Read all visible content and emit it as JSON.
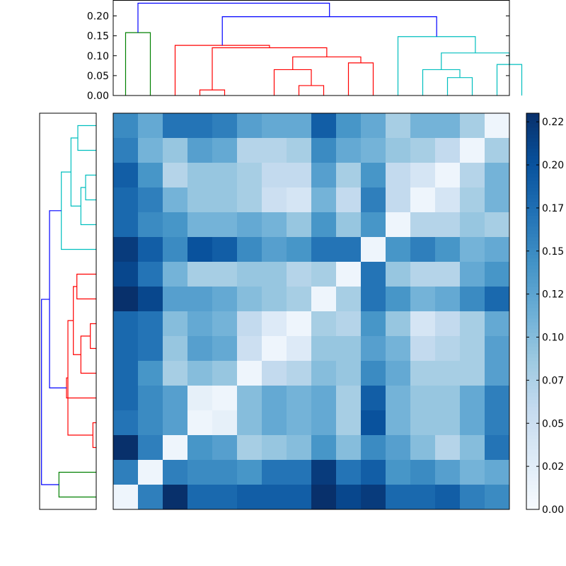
{
  "chart_data": [
    {
      "type": "dendrogram",
      "orientation": "top",
      "ylim": [
        0,
        0.24
      ],
      "y_ticks": [
        "0.00",
        "0.05",
        "0.10",
        "0.15",
        "0.20"
      ],
      "y_tick_values": [
        0.0,
        0.05,
        0.1,
        0.15,
        0.2
      ],
      "leaf_count": 16,
      "links": [
        {
          "x": [
            0.5,
            0.5,
            1.5,
            1.5
          ],
          "y": [
            0.0,
            0.158,
            0.158,
            0.0
          ],
          "color": "#008000"
        },
        {
          "x": [
            3.5,
            3.5,
            4.5,
            4.5
          ],
          "y": [
            0.0,
            0.014,
            0.014,
            0.0
          ],
          "color": "#ff0000"
        },
        {
          "x": [
            7.5,
            7.5,
            8.5,
            8.5
          ],
          "y": [
            0.0,
            0.025,
            0.025,
            0.0
          ],
          "color": "#ff0000"
        },
        {
          "x": [
            6.5,
            6.5,
            8.0,
            8.0
          ],
          "y": [
            0.0,
            0.065,
            0.065,
            0.025
          ],
          "color": "#ff0000"
        },
        {
          "x": [
            9.5,
            9.5,
            10.5,
            10.5
          ],
          "y": [
            0.0,
            0.082,
            0.082,
            0.0
          ],
          "color": "#ff0000"
        },
        {
          "x": [
            7.25,
            7.25,
            10.0,
            10.0
          ],
          "y": [
            0.065,
            0.097,
            0.097,
            0.082
          ],
          "color": "#ff0000"
        },
        {
          "x": [
            4.0,
            4.0,
            8.625,
            8.625
          ],
          "y": [
            0.014,
            0.12,
            0.12,
            0.097
          ],
          "color": "#ff0000"
        },
        {
          "x": [
            2.5,
            2.5,
            6.3125,
            6.3125
          ],
          "y": [
            0.0,
            0.126,
            0.126,
            0.12
          ],
          "color": "#ff0000"
        },
        {
          "x": [
            13.5,
            13.5,
            14.5,
            14.5
          ],
          "y": [
            0.0,
            0.045,
            0.045,
            0.0
          ],
          "color": "#00bfbf"
        },
        {
          "x": [
            12.5,
            12.5,
            14.0,
            14.0
          ],
          "y": [
            0.0,
            0.065,
            0.065,
            0.045
          ],
          "color": "#00bfbf"
        },
        {
          "x": [
            15.5,
            15.5,
            16.5,
            16.5
          ],
          "y": [
            0.0,
            0.078,
            0.078,
            0.0
          ],
          "color": "#00bfbf"
        },
        {
          "x": [
            13.25,
            13.25,
            16.0,
            16.0
          ],
          "y": [
            0.065,
            0.107,
            0.107,
            0.078
          ],
          "color": "#00bfbf"
        },
        {
          "x": [
            11.5,
            11.5,
            14.625,
            14.625
          ],
          "y": [
            0.0,
            0.148,
            0.148,
            0.107
          ],
          "color": "#00bfbf"
        },
        {
          "x": [
            4.40625,
            4.40625,
            13.0625,
            13.0625
          ],
          "y": [
            0.126,
            0.198,
            0.198,
            0.148
          ],
          "color": "#0000ff"
        },
        {
          "x": [
            1.0,
            1.0,
            8.734375,
            8.734375
          ],
          "y": [
            0.158,
            0.232,
            0.232,
            0.198
          ],
          "color": "#0000ff"
        }
      ]
    },
    {
      "type": "dendrogram",
      "orientation": "left",
      "xlim": [
        0.24,
        0
      ],
      "leaf_count": 16,
      "links": [
        {
          "leaf": [
            0.5,
            0.5,
            1.5,
            1.5
          ],
          "height": [
            0.0,
            0.158,
            0.158,
            0.0
          ],
          "color": "#008000"
        },
        {
          "leaf": [
            2.5,
            2.5,
            3.5,
            3.5
          ],
          "height": [
            0.0,
            0.014,
            0.014,
            0.0
          ],
          "color": "#ff0000"
        },
        {
          "leaf": [
            6.5,
            6.5,
            7.5,
            7.5
          ],
          "height": [
            0.0,
            0.025,
            0.025,
            0.0
          ],
          "color": "#ff0000"
        },
        {
          "leaf": [
            5.5,
            5.5,
            7.0,
            7.0
          ],
          "height": [
            0.0,
            0.065,
            0.065,
            0.025
          ],
          "color": "#ff0000"
        },
        {
          "leaf": [
            8.5,
            8.5,
            9.5,
            9.5
          ],
          "height": [
            0.0,
            0.082,
            0.082,
            0.0
          ],
          "color": "#ff0000"
        },
        {
          "leaf": [
            6.25,
            6.25,
            9.0,
            9.0
          ],
          "height": [
            0.065,
            0.097,
            0.097,
            0.082
          ],
          "color": "#ff0000"
        },
        {
          "leaf": [
            3.0,
            3.0,
            7.625,
            7.625
          ],
          "height": [
            0.014,
            0.12,
            0.12,
            0.097
          ],
          "color": "#ff0000"
        },
        {
          "leaf": [
            4.5,
            4.5,
            5.3125,
            5.3125
          ],
          "height": [
            0.0,
            0.126,
            0.126,
            0.12
          ],
          "color": "#ff0000"
        },
        {
          "leaf": [
            12.5,
            12.5,
            13.5,
            13.5
          ],
          "height": [
            0.0,
            0.045,
            0.045,
            0.0
          ],
          "color": "#00bfbf"
        },
        {
          "leaf": [
            11.5,
            11.5,
            13.0,
            13.0
          ],
          "height": [
            0.0,
            0.065,
            0.065,
            0.045
          ],
          "color": "#00bfbf"
        },
        {
          "leaf": [
            14.5,
            14.5,
            15.5,
            15.5
          ],
          "height": [
            0.0,
            0.078,
            0.078,
            0.0
          ],
          "color": "#00bfbf"
        },
        {
          "leaf": [
            12.25,
            12.25,
            15.0,
            15.0
          ],
          "height": [
            0.065,
            0.107,
            0.107,
            0.078
          ],
          "color": "#00bfbf"
        },
        {
          "leaf": [
            10.5,
            10.5,
            13.625,
            13.625
          ],
          "height": [
            0.0,
            0.148,
            0.148,
            0.107
          ],
          "color": "#00bfbf"
        },
        {
          "leaf": [
            4.90625,
            4.90625,
            12.0625,
            12.0625
          ],
          "height": [
            0.126,
            0.198,
            0.198,
            0.148
          ],
          "color": "#0000ff"
        },
        {
          "leaf": [
            1.0,
            1.0,
            8.484375,
            8.484375
          ],
          "height": [
            0.158,
            0.232,
            0.232,
            0.198
          ],
          "color": "#0000ff"
        }
      ]
    },
    {
      "type": "heatmap",
      "colormap": "Blues",
      "vmin": 0,
      "vmax": 0.23,
      "rows": 16,
      "cols": 16,
      "values": [
        [
          0.15,
          0.12,
          0.17,
          0.17,
          0.16,
          0.13,
          0.12,
          0.12,
          0.19,
          0.14,
          0.12,
          0.08,
          0.11,
          0.11,
          0.08,
          0.01
        ],
        [
          0.16,
          0.11,
          0.09,
          0.13,
          0.12,
          0.07,
          0.07,
          0.08,
          0.15,
          0.12,
          0.11,
          0.09,
          0.08,
          0.06,
          0.01,
          0.08
        ],
        [
          0.19,
          0.14,
          0.07,
          0.09,
          0.09,
          0.08,
          0.06,
          0.06,
          0.13,
          0.08,
          0.14,
          0.06,
          0.04,
          0.01,
          0.07,
          0.11
        ],
        [
          0.18,
          0.16,
          0.11,
          0.09,
          0.09,
          0.08,
          0.05,
          0.04,
          0.11,
          0.06,
          0.16,
          0.06,
          0.01,
          0.04,
          0.08,
          0.11
        ],
        [
          0.18,
          0.15,
          0.14,
          0.11,
          0.11,
          0.12,
          0.11,
          0.09,
          0.14,
          0.09,
          0.14,
          0.01,
          0.07,
          0.07,
          0.09,
          0.08
        ],
        [
          0.22,
          0.19,
          0.15,
          0.2,
          0.19,
          0.15,
          0.13,
          0.14,
          0.17,
          0.17,
          0.01,
          0.14,
          0.16,
          0.14,
          0.11,
          0.12
        ],
        [
          0.21,
          0.17,
          0.11,
          0.08,
          0.08,
          0.09,
          0.09,
          0.07,
          0.08,
          0.01,
          0.17,
          0.09,
          0.07,
          0.07,
          0.12,
          0.14
        ],
        [
          0.23,
          0.21,
          0.13,
          0.13,
          0.12,
          0.1,
          0.09,
          0.08,
          0.01,
          0.08,
          0.17,
          0.14,
          0.11,
          0.12,
          0.15,
          0.18
        ],
        [
          0.18,
          0.17,
          0.1,
          0.12,
          0.11,
          0.06,
          0.03,
          0.01,
          0.08,
          0.07,
          0.14,
          0.09,
          0.04,
          0.06,
          0.08,
          0.12
        ],
        [
          0.18,
          0.17,
          0.09,
          0.13,
          0.12,
          0.05,
          0.01,
          0.03,
          0.09,
          0.09,
          0.13,
          0.11,
          0.06,
          0.07,
          0.08,
          0.13
        ],
        [
          0.18,
          0.14,
          0.08,
          0.1,
          0.09,
          0.01,
          0.06,
          0.07,
          0.1,
          0.09,
          0.15,
          0.12,
          0.08,
          0.08,
          0.08,
          0.13
        ],
        [
          0.18,
          0.15,
          0.13,
          0.02,
          0.01,
          0.1,
          0.12,
          0.11,
          0.12,
          0.08,
          0.19,
          0.11,
          0.09,
          0.09,
          0.12,
          0.16
        ],
        [
          0.17,
          0.15,
          0.13,
          0.01,
          0.02,
          0.1,
          0.12,
          0.11,
          0.12,
          0.08,
          0.2,
          0.11,
          0.09,
          0.09,
          0.12,
          0.16
        ],
        [
          0.23,
          0.16,
          0.01,
          0.14,
          0.13,
          0.08,
          0.09,
          0.1,
          0.14,
          0.1,
          0.15,
          0.13,
          0.1,
          0.07,
          0.1,
          0.17
        ],
        [
          0.16,
          0.01,
          0.16,
          0.15,
          0.15,
          0.14,
          0.17,
          0.17,
          0.22,
          0.17,
          0.19,
          0.14,
          0.15,
          0.13,
          0.11,
          0.12
        ],
        [
          0.01,
          0.16,
          0.23,
          0.18,
          0.18,
          0.19,
          0.19,
          0.19,
          0.23,
          0.21,
          0.22,
          0.18,
          0.18,
          0.19,
          0.16,
          0.15
        ]
      ]
    },
    {
      "type": "colorbar",
      "colormap": "Blues",
      "vmin": 0,
      "vmax": 0.23,
      "tick_labels": [
        "0.00",
        "0.02",
        "0.05",
        "0.07",
        "0.10",
        "0.12",
        "0.15",
        "0.17",
        "0.20",
        "0.22"
      ],
      "tick_values": [
        0.0,
        0.025,
        0.05,
        0.075,
        0.1,
        0.125,
        0.15,
        0.175,
        0.2,
        0.225
      ]
    }
  ]
}
